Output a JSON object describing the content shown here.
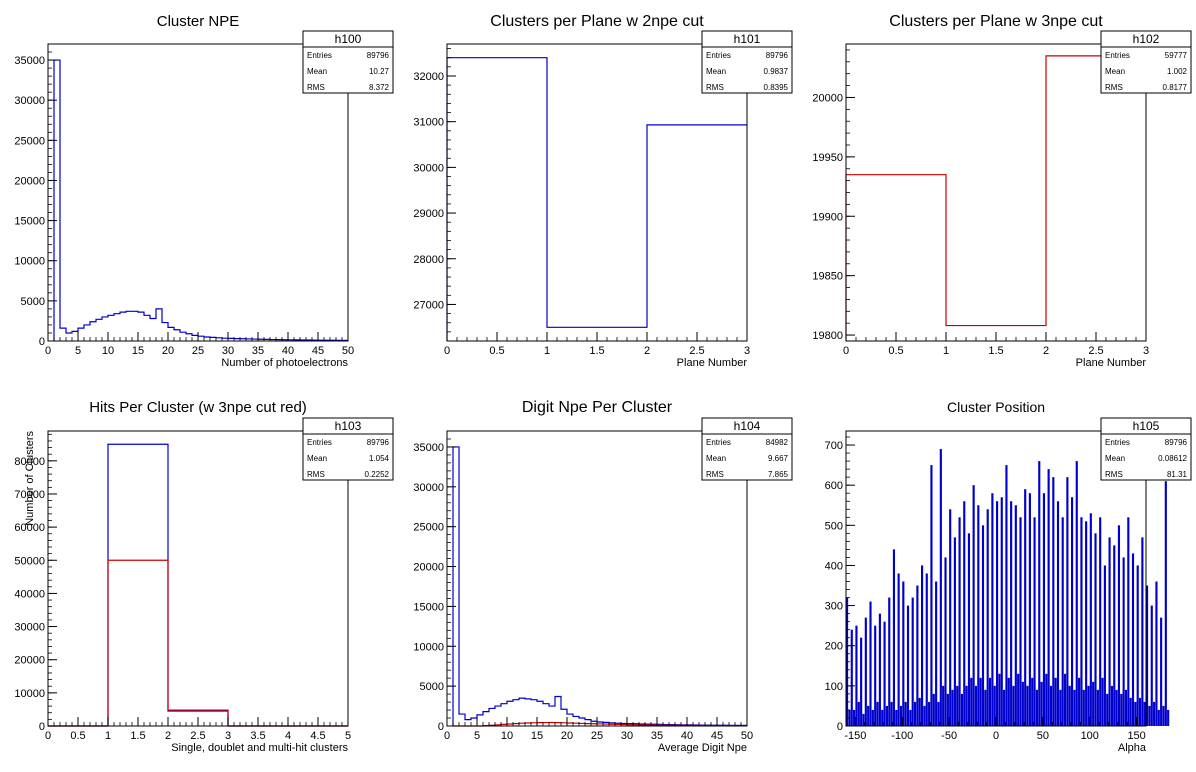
{
  "chart_data": [
    {
      "type": "histogram",
      "title": "Cluster NPE",
      "xlabel": "Number of photoelectrons",
      "ylabel": "",
      "xlim": [
        0,
        50
      ],
      "ylim": [
        0,
        37000
      ],
      "xticks": [
        "0",
        "5",
        "10",
        "15",
        "20",
        "25",
        "30",
        "35",
        "40",
        "45",
        "50"
      ],
      "yticks": [
        "0",
        "5000",
        "10000",
        "15000",
        "20000",
        "25000",
        "30000",
        "35000"
      ],
      "stats": {
        "name": "h100",
        "Entries": "89796",
        "Mean": "10.27",
        "RMS": "8.372"
      },
      "stat_labels": [
        "Entries",
        "Mean",
        "RMS"
      ],
      "series": [
        {
          "color": "#0000cc",
          "edges": [
            1,
            2,
            3,
            4,
            5,
            6,
            7,
            8,
            9,
            10,
            11,
            12,
            13,
            14,
            15,
            16,
            17,
            18,
            19,
            20,
            21,
            22,
            23,
            24,
            25,
            26,
            27,
            28,
            29,
            30,
            31,
            32,
            33,
            34,
            35,
            36,
            37,
            38,
            39,
            40,
            41,
            42,
            43,
            44,
            45,
            46,
            47,
            48,
            49,
            50
          ],
          "values": [
            35000,
            1600,
            1000,
            1200,
            1600,
            2000,
            2400,
            2700,
            3000,
            3200,
            3400,
            3600,
            3700,
            3700,
            3600,
            3200,
            2800,
            4000,
            2300,
            1700,
            1400,
            1100,
            900,
            700,
            600,
            500,
            450,
            400,
            350,
            330,
            300,
            280,
            260,
            240,
            220,
            200,
            180,
            170,
            160,
            150,
            140,
            130,
            120,
            110,
            100,
            95,
            90,
            85,
            80
          ]
        }
      ]
    },
    {
      "type": "histogram",
      "title": "Clusters per Plane w 2npe cut",
      "xlabel": "Plane Number",
      "ylabel": "",
      "xlim": [
        0,
        3
      ],
      "ylim": [
        26200,
        32700
      ],
      "xticks": [
        "0",
        "0.5",
        "1",
        "1.5",
        "2",
        "2.5",
        "3"
      ],
      "yticks": [
        "27000",
        "28000",
        "29000",
        "30000",
        "31000",
        "32000"
      ],
      "stats": {
        "name": "h101",
        "Entries": "89796",
        "Mean": "0.9837",
        "RMS": "0.8395"
      },
      "stat_labels": [
        "Entries",
        "Mean",
        "RMS"
      ],
      "series": [
        {
          "color": "#0000cc",
          "edges": [
            0,
            1,
            2,
            3
          ],
          "values": [
            32400,
            26500,
            30930
          ]
        }
      ]
    },
    {
      "type": "histogram",
      "title": "Clusters per Plane w 3npe cut",
      "xlabel": "Plane Number",
      "ylabel": "",
      "xlim": [
        0,
        3
      ],
      "ylim": [
        19795,
        20045
      ],
      "xticks": [
        "0",
        "0.5",
        "1",
        "1.5",
        "2",
        "2.5",
        "3"
      ],
      "yticks": [
        "19800",
        "19850",
        "19900",
        "19950",
        "20000"
      ],
      "stats": {
        "name": "h102",
        "Entries": "59777",
        "Mean": "1.002",
        "RMS": "0.8177"
      },
      "stat_labels": [
        "Entries",
        "Mean",
        "RMS"
      ],
      "series": [
        {
          "color": "#cc0000",
          "edges": [
            0,
            1,
            2,
            3
          ],
          "values": [
            19935,
            19808,
            20035
          ]
        }
      ]
    },
    {
      "type": "histogram",
      "title": "Hits Per Cluster (w 3npe cut red)",
      "xlabel": "Single, doublet and multi-hit clusters",
      "ylabel": "Number of Clusters",
      "xlim": [
        0,
        5
      ],
      "ylim": [
        0,
        89000
      ],
      "xticks": [
        "0",
        "0.5",
        "1",
        "1.5",
        "2",
        "2.5",
        "3",
        "3.5",
        "4",
        "4.5",
        "5"
      ],
      "yticks": [
        "0",
        "10000",
        "20000",
        "30000",
        "40000",
        "50000",
        "60000",
        "70000",
        "80000"
      ],
      "stats": {
        "name": "h103",
        "Entries": "89796",
        "Mean": "1.054",
        "RMS": "0.2252"
      },
      "stat_labels": [
        "Entries",
        "Mean",
        "RMS"
      ],
      "series": [
        {
          "color": "#0000cc",
          "edges": [
            0,
            1,
            2,
            3,
            4,
            5
          ],
          "values": [
            0,
            85000,
            4500,
            0,
            0
          ]
        },
        {
          "color": "#cc0000",
          "edges": [
            0,
            1,
            2,
            3,
            4,
            5
          ],
          "values": [
            0,
            50000,
            4800,
            0,
            0
          ]
        }
      ]
    },
    {
      "type": "histogram",
      "title": "Digit Npe Per Cluster",
      "xlabel": "Average Digit Npe",
      "ylabel": "",
      "xlim": [
        0,
        50
      ],
      "ylim": [
        0,
        37000
      ],
      "xticks": [
        "0",
        "5",
        "10",
        "15",
        "20",
        "25",
        "30",
        "35",
        "40",
        "45",
        "50"
      ],
      "yticks": [
        "0",
        "5000",
        "10000",
        "15000",
        "20000",
        "25000",
        "30000",
        "35000"
      ],
      "stats": {
        "name": "h104",
        "Entries": "84982",
        "Mean": "9.667",
        "RMS": "7.865"
      },
      "stat_labels": [
        "Entries",
        "Mean",
        "RMS"
      ],
      "series": [
        {
          "color": "#0000cc",
          "edges": [
            1,
            2,
            3,
            4,
            5,
            6,
            7,
            8,
            9,
            10,
            11,
            12,
            13,
            14,
            15,
            16,
            17,
            18,
            19,
            20,
            21,
            22,
            23,
            24,
            25,
            26,
            27,
            28,
            29,
            30,
            31,
            32,
            33,
            34,
            35,
            36,
            37,
            38,
            39,
            40,
            41,
            42,
            43,
            44,
            45,
            46,
            47,
            48,
            49,
            50
          ],
          "values": [
            35000,
            1500,
            800,
            1000,
            1400,
            1800,
            2200,
            2500,
            2800,
            3100,
            3300,
            3500,
            3400,
            3300,
            3100,
            2800,
            2500,
            3700,
            2100,
            1500,
            1200,
            1000,
            800,
            600,
            500,
            450,
            400,
            350,
            320,
            300,
            280,
            260,
            240,
            220,
            200,
            180,
            170,
            160,
            150,
            140,
            130,
            120,
            110,
            100,
            95,
            90,
            85,
            80,
            75
          ]
        },
        {
          "color": "#cc0000",
          "edges": [
            1,
            2,
            3,
            4,
            5,
            6,
            7,
            8,
            9,
            10,
            11,
            12,
            13,
            14,
            15,
            16,
            17,
            18,
            19,
            20,
            21,
            22,
            23,
            24,
            25,
            26,
            27,
            28,
            29,
            30,
            31,
            32,
            33,
            34,
            35,
            36,
            37,
            38,
            39,
            40,
            41,
            42,
            43,
            44,
            45,
            46,
            47,
            48,
            49,
            50
          ],
          "values": [
            0,
            0,
            0,
            0,
            0,
            50,
            100,
            150,
            200,
            250,
            300,
            350,
            380,
            400,
            420,
            430,
            440,
            420,
            400,
            380,
            350,
            320,
            300,
            280,
            260,
            240,
            220,
            200,
            180,
            160,
            150,
            140,
            130,
            120,
            110,
            100,
            95,
            90,
            85,
            80,
            75,
            70,
            65,
            60,
            55,
            50,
            45,
            40,
            35
          ]
        }
      ]
    },
    {
      "type": "histogram",
      "title": "Cluster Position",
      "xlabel": "Alpha",
      "ylabel": "",
      "xlim": [
        -160,
        160
      ],
      "ylim": [
        0,
        735
      ],
      "xticks": [
        "-150",
        "-100",
        "-50",
        "0",
        "50",
        "100",
        "150"
      ],
      "xtick_values": [
        -150,
        -100,
        -50,
        0,
        50,
        100,
        150
      ],
      "yticks": [
        "0",
        "100",
        "200",
        "300",
        "400",
        "500",
        "600",
        "700"
      ],
      "stats": {
        "name": "h105",
        "Entries": "89796",
        "Mean": "0.08612",
        "RMS": "81.31"
      },
      "stat_labels": [
        "Entries",
        "Mean",
        "RMS"
      ],
      "series": [
        {
          "color": "#0000cc",
          "comb": true,
          "start": -160,
          "bin_width": 2.5,
          "values": [
            320,
            40,
            240,
            40,
            250,
            60,
            220,
            30,
            270,
            50,
            310,
            40,
            250,
            60,
            280,
            40,
            260,
            50,
            320,
            60,
            440,
            40,
            380,
            50,
            360,
            60,
            300,
            40,
            320,
            60,
            350,
            70,
            400,
            50,
            380,
            60,
            650,
            80,
            360,
            60,
            690,
            100,
            420,
            80,
            540,
            90,
            470,
            100,
            520,
            80,
            560,
            100,
            480,
            120,
            600,
            100,
            550,
            120,
            500,
            90,
            540,
            120,
            580,
            100,
            560,
            130,
            570,
            90,
            650,
            120,
            560,
            100,
            550,
            130,
            520,
            110,
            590,
            100,
            580,
            120,
            520,
            90,
            660,
            110,
            580,
            130,
            640,
            100,
            620,
            120,
            560,
            90,
            520,
            130,
            620,
            100,
            570,
            90,
            660,
            120,
            520,
            90,
            510,
            100,
            530,
            110,
            480,
            90,
            520,
            120,
            400,
            80,
            470,
            100,
            450,
            90,
            500,
            80,
            420,
            90,
            520,
            70,
            430,
            60,
            400,
            70,
            470,
            60,
            350,
            50,
            300,
            60,
            360,
            40,
            270,
            50,
            610,
            40
          ]
        }
      ]
    }
  ]
}
